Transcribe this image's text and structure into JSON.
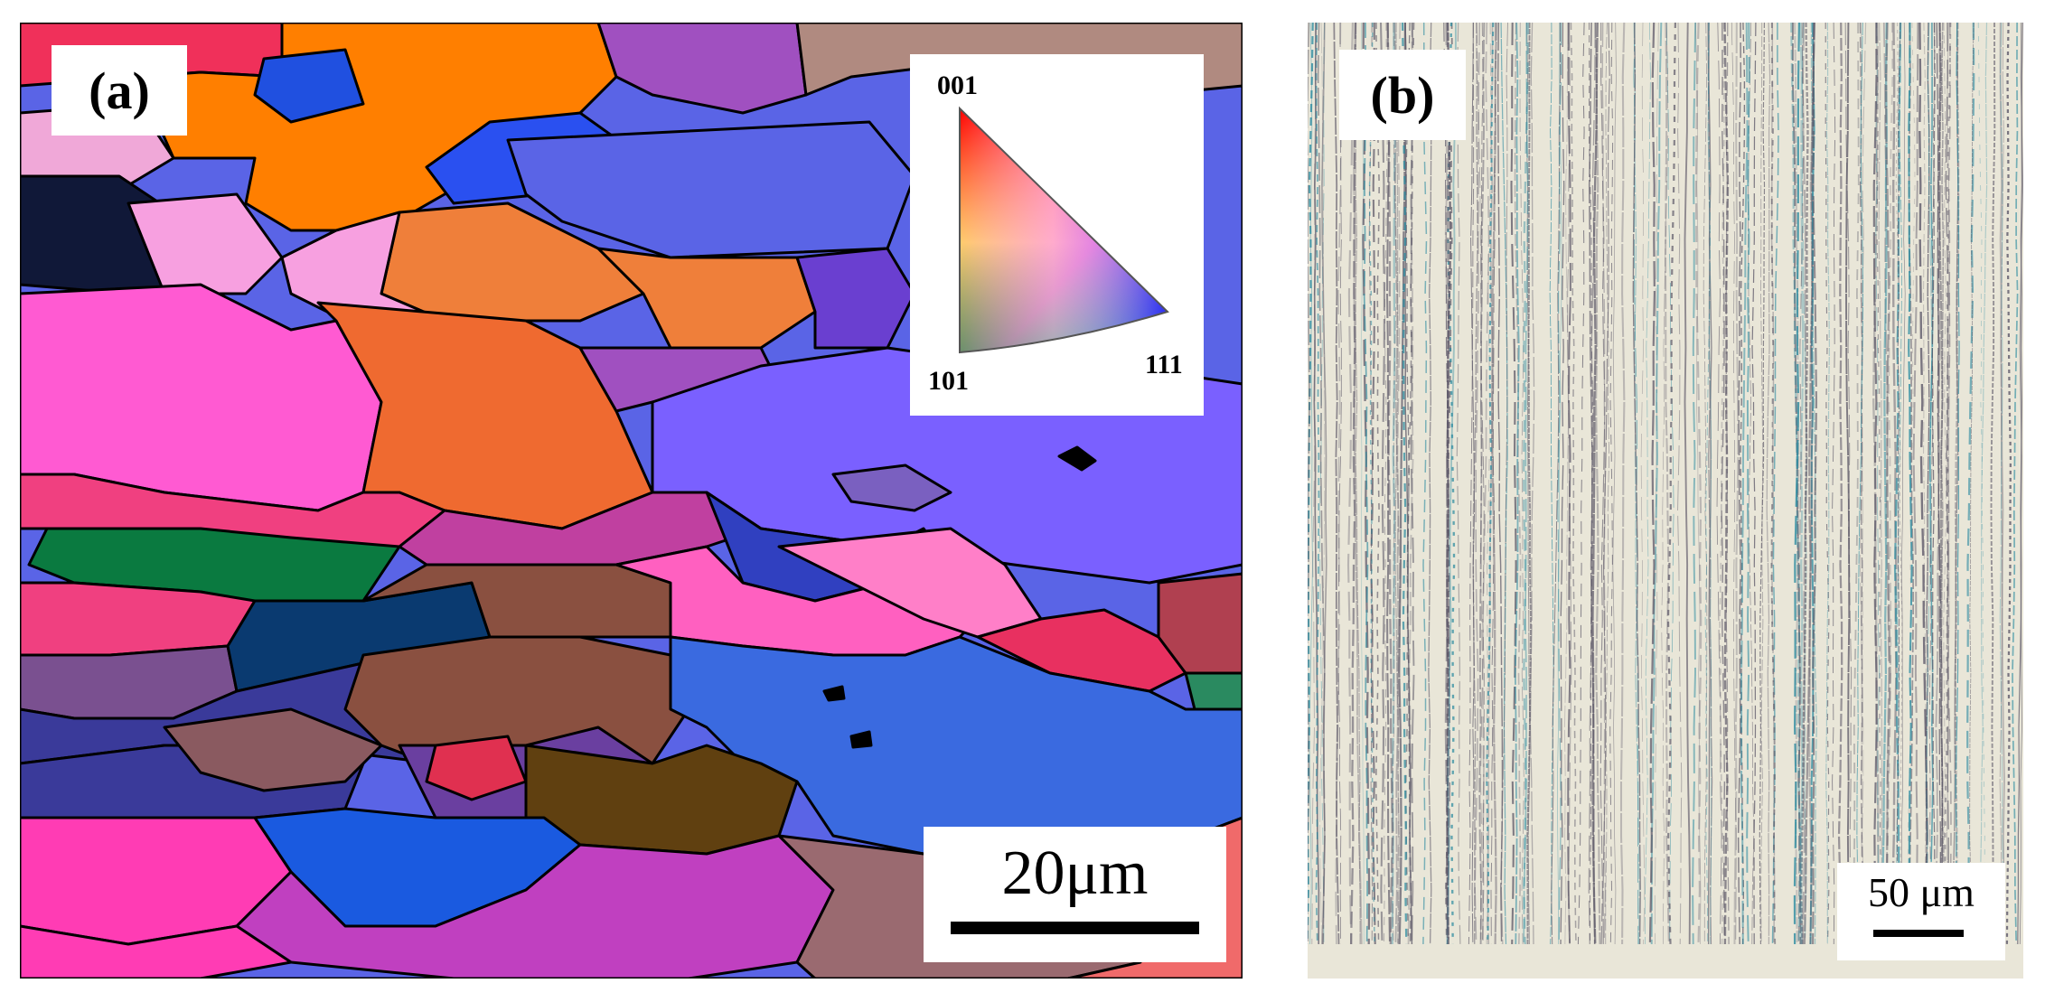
{
  "figure": {
    "panel_a": {
      "label": "(a)",
      "scale_bar": "20μm",
      "legend": {
        "corner_top": "001",
        "corner_bottom_left": "101",
        "corner_bottom_right": "111"
      },
      "grain_colors": [
        "#ff7f00",
        "#5a64e6",
        "#ff5ad2",
        "#ef7f3a",
        "#7a3fa0",
        "#0a7a40",
        "#8a5040",
        "#3050e0",
        "#ff60c0",
        "#101030",
        "#e83060",
        "#604010",
        "#3a3a9a",
        "#a05090"
      ]
    },
    "panel_b": {
      "label": "(b)",
      "scale_bar": "50 μm",
      "colors": [
        "#e9e6d8",
        "#5a5566",
        "#2a8aa0"
      ]
    }
  }
}
